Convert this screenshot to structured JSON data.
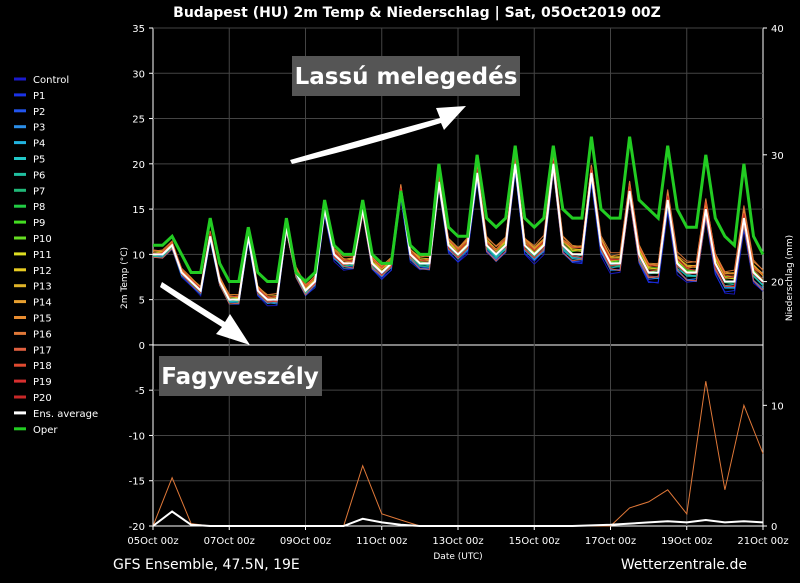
{
  "title": "Budapest  (HU)  2m Temp & Niederschlag | Sat, 05Oct2019 00Z",
  "footer_left": "GFS Ensemble, 47.5N, 19E",
  "footer_right": "Wetterzentrale.de",
  "annotations": {
    "warming": "Lassú melegedés",
    "frost": "Fagyveszély"
  },
  "colors": {
    "background": "#000000",
    "oper": "#22cc22",
    "average": "#ffffff"
  },
  "legend": [
    {
      "label": "Control",
      "color": "#1a1acc"
    },
    {
      "label": "P1",
      "color": "#1a33e6"
    },
    {
      "label": "P2",
      "color": "#2255ee"
    },
    {
      "label": "P3",
      "color": "#2b8ee8"
    },
    {
      "label": "P4",
      "color": "#22b4e0"
    },
    {
      "label": "P5",
      "color": "#22c8c8"
    },
    {
      "label": "P6",
      "color": "#20c0a0"
    },
    {
      "label": "P7",
      "color": "#20b878"
    },
    {
      "label": "P8",
      "color": "#22cc44"
    },
    {
      "label": "P9",
      "color": "#44dd22"
    },
    {
      "label": "P10",
      "color": "#66dd22"
    },
    {
      "label": "P11",
      "color": "#dddd22"
    },
    {
      "label": "P12",
      "color": "#e8cc22"
    },
    {
      "label": "P13",
      "color": "#e0b428"
    },
    {
      "label": "P14",
      "color": "#e8a030"
    },
    {
      "label": "P15",
      "color": "#e88c30"
    },
    {
      "label": "P16",
      "color": "#e07838"
    },
    {
      "label": "P17",
      "color": "#e06040"
    },
    {
      "label": "P18",
      "color": "#e04a30"
    },
    {
      "label": "P19",
      "color": "#d83030"
    },
    {
      "label": "P20",
      "color": "#c82828"
    },
    {
      "label": "Ens. average",
      "color": "#ffffff"
    },
    {
      "label": "Oper",
      "color": "#22cc22"
    }
  ],
  "chart_data": {
    "type": "line",
    "title": "Budapest  (HU)  2m Temp & Niederschlag | Sat, 05Oct2019 00Z",
    "xlabel": "Date (UTC)",
    "ylabel": "2m Temp (°C)",
    "y2label": "Niederschlag (mm)",
    "x_ticks": [
      "05Oct 00z",
      "07Oct 00z",
      "09Oct 00z",
      "11Oct 00z",
      "13Oct 00z",
      "15Oct 00z",
      "17Oct 00z",
      "19Oct 00z",
      "21Oct 00z"
    ],
    "x_range_days": [
      0,
      16
    ],
    "y_ticks": [
      35,
      30,
      25,
      20,
      15,
      10,
      5,
      0,
      -5,
      -10,
      -15,
      -20
    ],
    "ylim": [
      -20,
      35
    ],
    "y2_ticks_temp_panel": [
      40,
      30,
      20
    ],
    "y2lim_temp_panel": [
      15,
      40
    ],
    "y2_ticks_precip_panel": [
      10,
      0
    ],
    "y2lim_precip_panel": [
      0,
      15
    ],
    "grid": true,
    "legend_position": "left",
    "series_temperature": {
      "time_days": [
        0,
        0.25,
        0.5,
        0.75,
        1,
        1.25,
        1.5,
        1.75,
        2,
        2.25,
        2.5,
        2.75,
        3,
        3.25,
        3.5,
        3.75,
        4,
        4.25,
        4.5,
        4.75,
        5,
        5.25,
        5.5,
        5.75,
        6,
        6.25,
        6.5,
        6.75,
        7,
        7.25,
        7.5,
        7.75,
        8,
        8.25,
        8.5,
        8.75,
        9,
        9.25,
        9.5,
        9.75,
        10,
        10.25,
        10.5,
        10.75,
        11,
        11.25,
        11.5,
        11.75,
        12,
        12.25,
        12.5,
        12.75,
        13,
        13.25,
        13.5,
        13.75,
        14,
        14.25,
        14.5,
        14.75,
        15,
        15.25,
        15.5,
        15.75,
        16
      ],
      "oper": [
        11,
        11,
        12,
        10,
        8,
        8,
        14,
        9,
        7,
        7,
        13,
        8,
        7,
        7,
        14,
        8,
        7,
        8,
        16,
        11,
        10,
        10,
        16,
        10,
        9,
        9,
        17,
        11,
        10,
        10,
        20,
        13,
        12,
        12,
        21,
        14,
        13,
        14,
        22,
        14,
        13,
        14,
        22,
        15,
        14,
        14,
        23,
        15,
        14,
        14,
        23,
        16,
        15,
        14,
        22,
        15,
        13,
        13,
        21,
        14,
        12,
        11,
        20,
        12,
        10
      ],
      "ens_average": [
        10,
        10,
        11,
        8,
        7,
        6,
        12,
        7,
        5,
        5,
        12,
        6,
        5,
        5,
        13,
        8,
        6,
        7,
        15,
        10,
        9,
        9,
        15,
        9,
        8,
        9,
        17,
        10,
        9,
        9,
        18,
        11,
        10,
        11,
        19,
        11,
        10,
        11,
        20,
        11,
        10,
        11,
        20,
        11,
        10,
        10,
        19,
        11,
        9,
        9,
        17,
        10,
        8,
        8,
        16,
        9,
        8,
        8,
        15,
        9,
        7,
        7,
        14,
        8,
        7
      ]
    },
    "series_precipitation_mm": {
      "time_days": [
        0,
        0.5,
        1,
        1.5,
        2,
        3,
        4,
        5,
        5.5,
        6,
        6.5,
        7,
        8,
        9,
        10,
        11,
        12,
        12.5,
        13,
        13.5,
        14,
        14.5,
        15,
        15.5,
        16
      ],
      "max_member": [
        0,
        4,
        0.2,
        0,
        0,
        0,
        0,
        0,
        5,
        1,
        0.5,
        0,
        0,
        0,
        0,
        0,
        0,
        1.5,
        2,
        3,
        1,
        12,
        3,
        10,
        6
      ],
      "ens_average": [
        0,
        1.2,
        0.1,
        0,
        0,
        0,
        0,
        0,
        0.6,
        0.3,
        0.1,
        0,
        0,
        0,
        0,
        0,
        0.1,
        0.2,
        0.3,
        0.4,
        0.3,
        0.5,
        0.3,
        0.4,
        0.3
      ]
    }
  }
}
